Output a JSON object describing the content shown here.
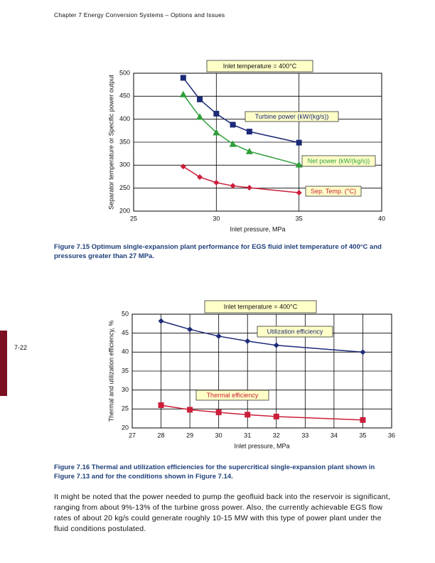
{
  "header": "Chapter 7  Energy Conversion Systems – Options and Issues",
  "page_number": "7-22",
  "chart_data": [
    {
      "type": "line",
      "xlabel": "Inlet pressure, MPa",
      "ylabel": "Separator temperature or Specific power output",
      "annotation": "Inlet temperature = 400°C",
      "x": [
        28,
        29,
        30,
        31,
        32,
        35
      ],
      "series": [
        {
          "name": "Turbine power (kW/(kg/s))",
          "color": "#1c2a78",
          "marker": "square",
          "values": [
            490,
            443,
            412,
            388,
            373,
            349
          ]
        },
        {
          "name": "Net power (kW/(kg/s))",
          "color": "#2e9e3a",
          "marker": "triangle",
          "values": [
            454,
            405,
            371,
            346,
            330,
            301
          ]
        },
        {
          "name": "Sep. Temp. (°C)",
          "color": "#cc1e3a",
          "marker": "diamond",
          "values": [
            297,
            274,
            262,
            255,
            251,
            240
          ]
        }
      ],
      "xlim": [
        25,
        40
      ],
      "xticks": [
        25,
        30,
        35,
        40
      ],
      "ylim": [
        200,
        500
      ],
      "yticks": [
        200,
        250,
        300,
        350,
        400,
        450,
        500
      ],
      "grid": true,
      "caption": "Figure 7.15 Optimum single-expansion plant performance for EGS fluid inlet temperature of 400°C and pressures greater than 27 MPa."
    },
    {
      "type": "line",
      "xlabel": "Inlet pressure, MPa",
      "ylabel": "Thermal and utilization efficiency, %",
      "annotation": "Inlet temperature = 400°C",
      "x": [
        28,
        29,
        30,
        31,
        32,
        35
      ],
      "series": [
        {
          "name": "Utilization efficiency",
          "color": "#1c2a78",
          "marker": "diamond",
          "values": [
            48.2,
            46,
            44.2,
            42.9,
            41.8,
            40
          ]
        },
        {
          "name": "Thermal efficiency",
          "color": "#cc1e3a",
          "marker": "square",
          "values": [
            26,
            24.8,
            24.1,
            23.5,
            23,
            22.1
          ]
        }
      ],
      "xlim": [
        27,
        36
      ],
      "xticks": [
        27,
        28,
        29,
        30,
        31,
        32,
        33,
        34,
        35,
        36
      ],
      "ylim": [
        20,
        50
      ],
      "yticks": [
        20,
        25,
        30,
        35,
        40,
        45,
        50
      ],
      "grid": true,
      "caption": "Figure 7.16 Thermal and utilization efficiencies for the supercritical single-expansion plant shown in Figure 7.13 and for the conditions shown in Figure 7.14."
    }
  ],
  "body": "It might be noted that the power needed to pump the geofluid back into the reservoir is significant, ranging from about 9%-13% of the turbine gross power. Also, the currently achievable EGS flow rates of about 20 kg/s could generate roughly 10-15 MW with this type of power plant under the fluid conditions postulated."
}
